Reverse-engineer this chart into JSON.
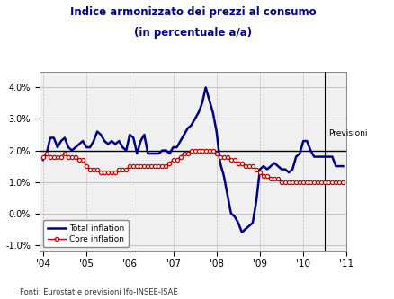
{
  "title_line1": "Indice armonizzato dei prezzi al consumo",
  "title_line2": "(in percentuale a/a)",
  "footnote": "Fonti: Eurostat e previsioni Ifo-INSEE-ISAE",
  "previsioni_label": "Previsioni",
  "legend_total": "Total inflation",
  "legend_core": "Core inflation",
  "ylim": [
    -1.2,
    4.5
  ],
  "yticks": [
    -1.0,
    0.0,
    1.0,
    2.0,
    3.0,
    4.0
  ],
  "yticklabels": [
    "-1.0%",
    "0.0%",
    "1.0%",
    "2.0%",
    "3.0%",
    "4.0%"
  ],
  "hline_y": 2.0,
  "vline_x": 78,
  "total_color": "#00008B",
  "core_color": "#CC0000",
  "bg_color": "#F0F0F0",
  "grid_color": "#BBBBBB",
  "title_color": "#00008B",
  "total_inflation": [
    1.7,
    1.9,
    2.4,
    2.4,
    2.1,
    2.3,
    2.4,
    2.1,
    2.0,
    2.1,
    2.2,
    2.3,
    2.1,
    2.1,
    2.3,
    2.6,
    2.5,
    2.3,
    2.2,
    2.3,
    2.2,
    2.3,
    2.1,
    2.0,
    2.5,
    2.4,
    1.9,
    2.3,
    2.5,
    1.9,
    1.9,
    1.9,
    1.9,
    2.0,
    2.0,
    1.9,
    2.1,
    2.1,
    2.3,
    2.5,
    2.7,
    2.8,
    3.0,
    3.2,
    3.5,
    4.0,
    3.6,
    3.2,
    2.6,
    1.6,
    1.2,
    0.6,
    0.0,
    -0.1,
    -0.3,
    -0.6,
    -0.5,
    -0.4,
    -0.3,
    0.4,
    1.4,
    1.5,
    1.4,
    1.5,
    1.6,
    1.5,
    1.4,
    1.4,
    1.3,
    1.4,
    1.8,
    1.9,
    2.3,
    2.3,
    2.0,
    1.8,
    1.8,
    1.8,
    1.8,
    1.8,
    1.8,
    1.5,
    1.5,
    1.5
  ],
  "core_inflation": [
    1.8,
    1.9,
    1.8,
    1.8,
    1.8,
    1.8,
    1.9,
    1.8,
    1.8,
    1.8,
    1.7,
    1.7,
    1.5,
    1.4,
    1.4,
    1.4,
    1.3,
    1.3,
    1.3,
    1.3,
    1.3,
    1.4,
    1.4,
    1.4,
    1.5,
    1.5,
    1.5,
    1.5,
    1.5,
    1.5,
    1.5,
    1.5,
    1.5,
    1.5,
    1.5,
    1.6,
    1.7,
    1.7,
    1.8,
    1.9,
    1.9,
    2.0,
    2.0,
    2.0,
    2.0,
    2.0,
    2.0,
    2.0,
    1.9,
    1.8,
    1.8,
    1.8,
    1.7,
    1.7,
    1.6,
    1.6,
    1.5,
    1.5,
    1.5,
    1.4,
    1.3,
    1.2,
    1.2,
    1.1,
    1.1,
    1.1,
    1.0,
    1.0,
    1.0,
    1.0,
    1.0,
    1.0,
    1.0,
    1.0,
    1.0,
    1.0,
    1.0,
    1.0,
    1.0,
    1.0,
    1.0,
    1.0,
    1.0,
    1.0
  ],
  "xtick_positions": [
    0,
    12,
    24,
    36,
    48,
    60,
    72,
    84
  ],
  "xtick_labels": [
    "'04",
    "'05",
    "'06",
    "'07",
    "'08",
    "'09",
    "'10",
    "'11"
  ]
}
